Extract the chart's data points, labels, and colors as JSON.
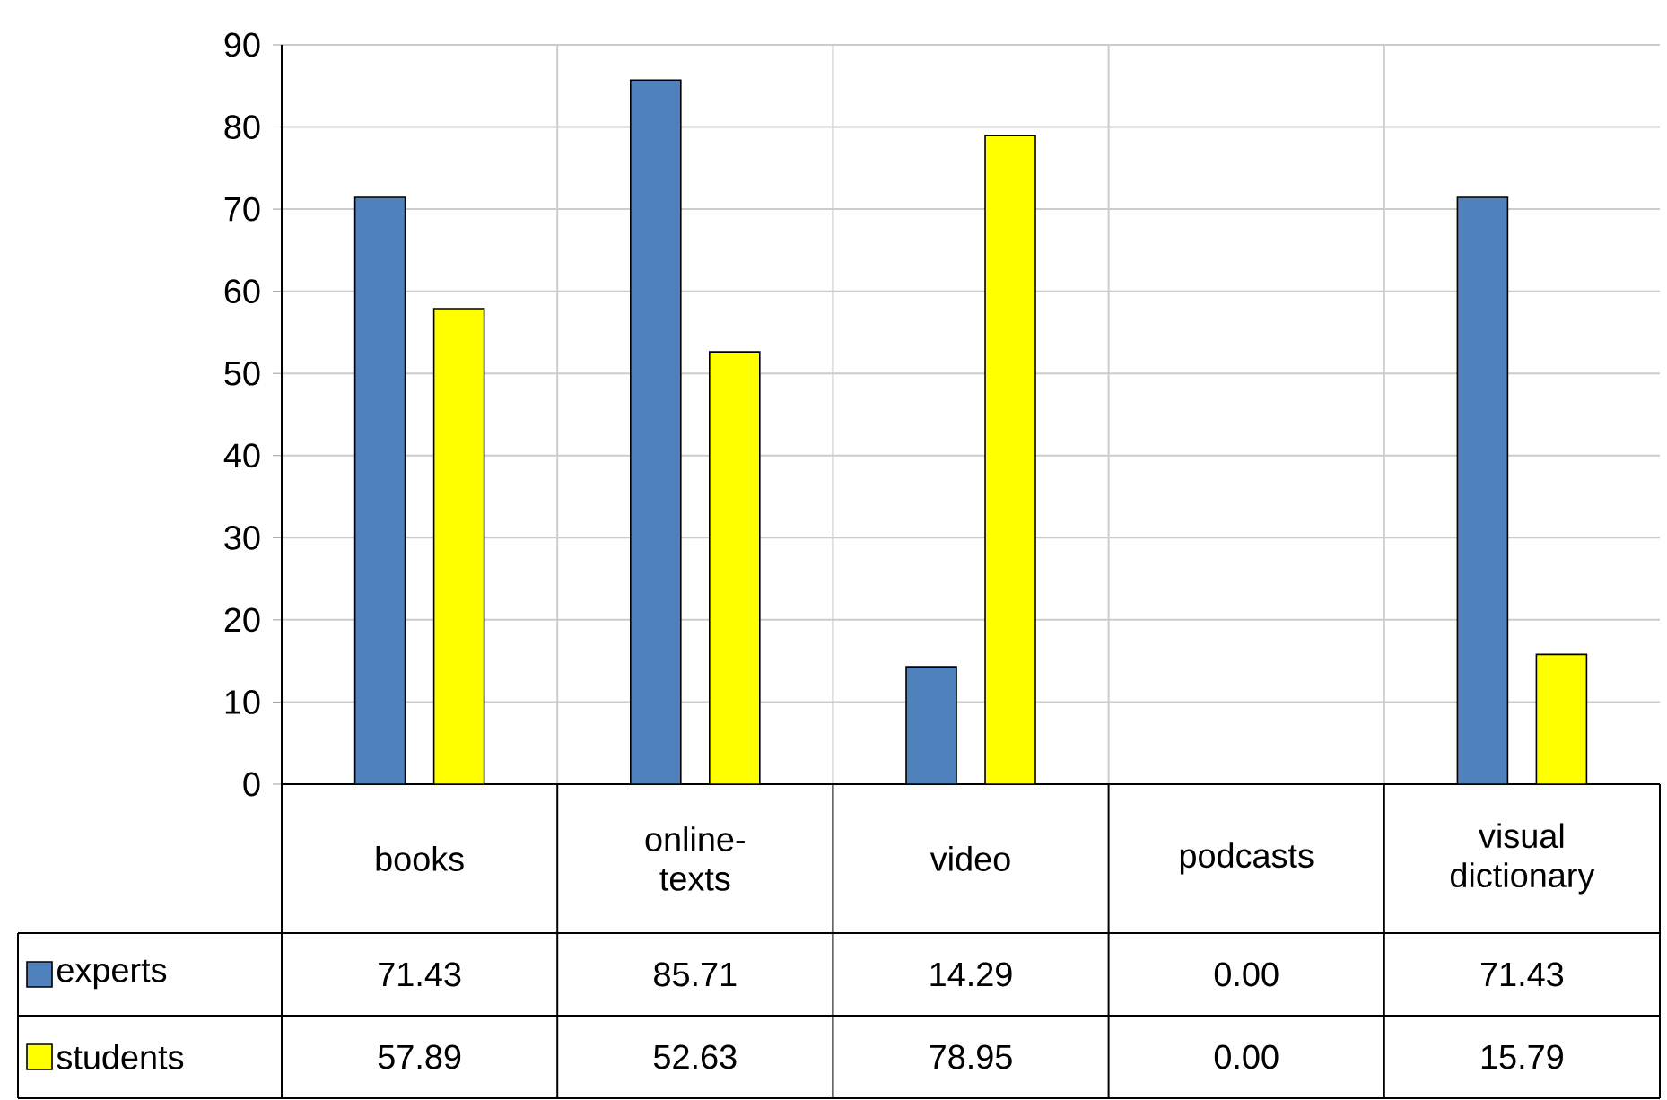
{
  "chart_data": {
    "type": "bar",
    "categories": [
      "books",
      "online-texts",
      "video",
      "podcasts",
      "visual dictionary"
    ],
    "series": [
      {
        "name": "experts",
        "color": "#4f81bd",
        "values": [
          71.43,
          85.71,
          14.29,
          0,
          71.43
        ],
        "value_labels": [
          "71.43",
          "85.71",
          "14.29",
          "0.00",
          "71.43"
        ]
      },
      {
        "name": "students",
        "color": "#ffff00",
        "values": [
          57.89,
          52.63,
          78.95,
          0,
          15.79
        ],
        "value_labels": [
          "57.89",
          "52.63",
          "78.95",
          "0.00",
          "15.79"
        ]
      }
    ],
    "ylim": [
      0,
      90
    ],
    "yticks": [
      0,
      10,
      20,
      30,
      40,
      50,
      60,
      70,
      80,
      90
    ],
    "grid": true,
    "legend": "bottom left"
  }
}
